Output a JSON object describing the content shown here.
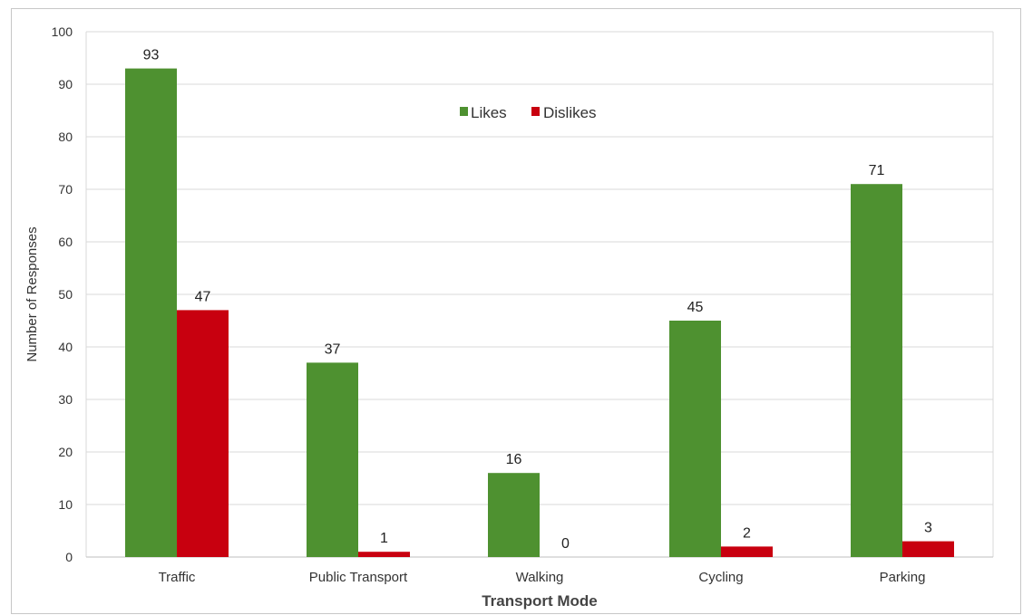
{
  "chart_data": {
    "type": "bar",
    "title": "",
    "xlabel": "Transport Mode",
    "ylabel": "Number of Responses",
    "categories": [
      "Traffic",
      "Public Transport",
      "Walking",
      "Cycling",
      "Parking"
    ],
    "series": [
      {
        "name": "Likes",
        "color": "#4e9130",
        "values": [
          93,
          37,
          16,
          45,
          71
        ]
      },
      {
        "name": "Dislikes",
        "color": "#c8000f",
        "values": [
          47,
          1,
          0,
          2,
          3
        ]
      }
    ],
    "ylim": [
      0,
      100
    ],
    "yticks": [
      0,
      10,
      20,
      30,
      40,
      50,
      60,
      70,
      80,
      90,
      100
    ],
    "grid": true,
    "legend_position": "top-center",
    "data_labels": true
  }
}
